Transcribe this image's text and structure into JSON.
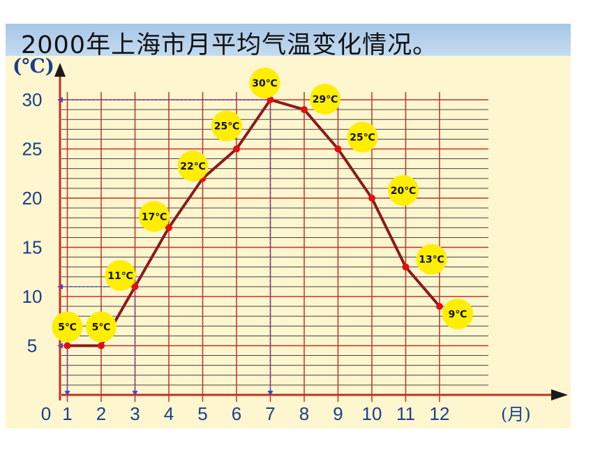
{
  "chart_data": {
    "type": "line",
    "title": "2000年上海市月平均气温变化情况。",
    "ylabel": "(℃)",
    "xlabel": "(月)",
    "origin_label": "0",
    "x": [
      1,
      2,
      3,
      4,
      5,
      6,
      7,
      8,
      9,
      10,
      11,
      12
    ],
    "x_tick_labels": [
      "1",
      "2",
      "3",
      "4",
      "5",
      "6",
      "7",
      "8",
      "9",
      "10",
      "11",
      "12"
    ],
    "y_tick_labels": [
      "5",
      "10",
      "15",
      "20",
      "25",
      "30"
    ],
    "y_ticks": [
      5,
      10,
      15,
      20,
      25,
      30
    ],
    "xlim": [
      0,
      12
    ],
    "ylim": [
      0,
      30
    ],
    "grid": true,
    "series": [
      {
        "values": [
          5,
          5,
          11,
          17,
          22,
          25,
          30,
          29,
          25,
          20,
          13,
          9
        ]
      }
    ],
    "data_labels": [
      "5℃",
      "5℃",
      "11℃",
      "17℃",
      "22℃",
      "25℃",
      "30℃",
      "29℃",
      "25℃",
      "20℃",
      "13℃",
      "9℃"
    ],
    "guide_points": [
      {
        "x": 1,
        "y": 5
      },
      {
        "x": 3,
        "y": 11
      },
      {
        "x": 7,
        "y": 30
      }
    ],
    "colors": {
      "line": "#8b1a1a",
      "point": "#e01010",
      "grid": "#c0302a",
      "grid_minor": "#2a2a2a",
      "axis": "#c0302a",
      "tick_label": "#1a3f8c",
      "label_badge": "#ffee00",
      "guide": "#3a4bd8"
    }
  }
}
